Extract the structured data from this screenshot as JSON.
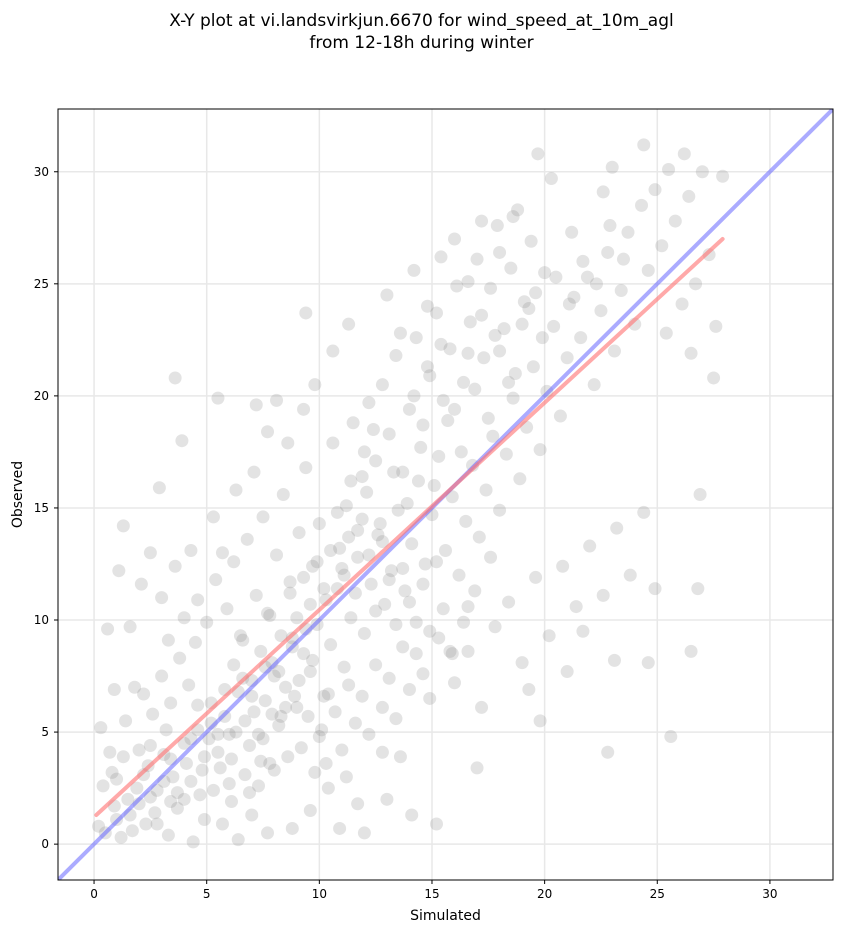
{
  "chart_data": {
    "type": "scatter",
    "title_lines": [
      "X-Y plot at vi.landsvirkjun.6670 for wind_speed_at_10m_agl",
      "from 12-18h during winter"
    ],
    "xlabel": "Simulated",
    "ylabel": "Observed",
    "xlim": [
      -1.6,
      32.8
    ],
    "ylim": [
      -1.6,
      32.8
    ],
    "xticks": [
      0,
      5,
      10,
      15,
      20,
      25,
      30
    ],
    "yticks": [
      0,
      5,
      10,
      15,
      20,
      25,
      30
    ],
    "grid": true,
    "colors": {
      "points": "#808080",
      "identity_line": "#6666ff",
      "fit_line": "#ff7070",
      "grid": "#e8e8e8"
    },
    "identity_line": {
      "x": [
        -1.6,
        32.8
      ],
      "y": [
        -1.6,
        32.8
      ]
    },
    "fit_line": {
      "x": [
        0.1,
        27.9
      ],
      "y": [
        1.3,
        27.0
      ]
    },
    "points": [
      [
        0.5,
        0.5
      ],
      [
        1.0,
        1.1
      ],
      [
        1.5,
        2.0
      ],
      [
        0.8,
        3.2
      ],
      [
        1.2,
        0.3
      ],
      [
        2.0,
        1.8
      ],
      [
        2.4,
        3.5
      ],
      [
        2.8,
        2.4
      ],
      [
        3.1,
        4.0
      ],
      [
        3.5,
        3.0
      ],
      [
        0.3,
        5.2
      ],
      [
        0.6,
        9.6
      ],
      [
        1.1,
        12.2
      ],
      [
        1.3,
        14.2
      ],
      [
        1.6,
        9.7
      ],
      [
        2.1,
        11.6
      ],
      [
        2.5,
        13.0
      ],
      [
        2.9,
        15.9
      ],
      [
        3.6,
        20.8
      ],
      [
        3.9,
        18.0
      ],
      [
        4.0,
        2.0
      ],
      [
        4.3,
        4.7
      ],
      [
        4.6,
        6.2
      ],
      [
        4.8,
        3.3
      ],
      [
        5.2,
        5.4
      ],
      [
        5.5,
        4.1
      ],
      [
        5.8,
        6.9
      ],
      [
        6.0,
        2.7
      ],
      [
        6.3,
        5.0
      ],
      [
        6.6,
        7.4
      ],
      [
        6.9,
        4.4
      ],
      [
        7.1,
        5.9
      ],
      [
        7.4,
        3.7
      ],
      [
        7.6,
        6.4
      ],
      [
        7.9,
        8.1
      ],
      [
        8.2,
        5.3
      ],
      [
        8.5,
        7.0
      ],
      [
        8.8,
        9.2
      ],
      [
        9.0,
        6.1
      ],
      [
        9.3,
        8.5
      ],
      [
        5.0,
        9.9
      ],
      [
        5.4,
        11.8
      ],
      [
        5.9,
        10.5
      ],
      [
        6.2,
        12.6
      ],
      [
        6.5,
        9.3
      ],
      [
        6.8,
        13.6
      ],
      [
        7.2,
        11.1
      ],
      [
        7.5,
        14.6
      ],
      [
        7.8,
        10.2
      ],
      [
        8.1,
        12.9
      ],
      [
        8.4,
        15.6
      ],
      [
        8.7,
        11.7
      ],
      [
        9.1,
        13.9
      ],
      [
        9.4,
        16.8
      ],
      [
        9.7,
        12.4
      ],
      [
        10.0,
        14.3
      ],
      [
        10.3,
        10.9
      ],
      [
        10.6,
        17.9
      ],
      [
        10.9,
        13.2
      ],
      [
        11.2,
        15.1
      ],
      [
        9.6,
        7.7
      ],
      [
        9.9,
        9.8
      ],
      [
        10.2,
        6.6
      ],
      [
        10.5,
        8.9
      ],
      [
        10.8,
        11.4
      ],
      [
        11.1,
        7.9
      ],
      [
        11.4,
        10.1
      ],
      [
        11.7,
        12.8
      ],
      [
        12.0,
        9.4
      ],
      [
        12.3,
        11.6
      ],
      [
        12.6,
        13.8
      ],
      [
        12.9,
        10.7
      ],
      [
        13.2,
        12.2
      ],
      [
        13.5,
        14.9
      ],
      [
        13.8,
        11.3
      ],
      [
        14.1,
        13.4
      ],
      [
        14.4,
        16.2
      ],
      [
        14.7,
        12.5
      ],
      [
        15.0,
        14.7
      ],
      [
        15.3,
        17.3
      ],
      [
        11.5,
        18.8
      ],
      [
        11.9,
        16.4
      ],
      [
        12.2,
        19.7
      ],
      [
        12.5,
        17.1
      ],
      [
        12.8,
        20.5
      ],
      [
        13.1,
        18.3
      ],
      [
        13.4,
        21.8
      ],
      [
        13.7,
        16.6
      ],
      [
        14.0,
        19.4
      ],
      [
        14.3,
        22.6
      ],
      [
        14.6,
        18.7
      ],
      [
        14.9,
        20.9
      ],
      [
        15.2,
        23.7
      ],
      [
        15.5,
        19.8
      ],
      [
        15.8,
        22.1
      ],
      [
        16.1,
        24.9
      ],
      [
        16.4,
        20.6
      ],
      [
        16.7,
        23.3
      ],
      [
        17.0,
        26.1
      ],
      [
        17.3,
        21.7
      ],
      [
        15.6,
        13.1
      ],
      [
        15.9,
        15.5
      ],
      [
        16.2,
        12.0
      ],
      [
        16.5,
        14.4
      ],
      [
        16.8,
        16.9
      ],
      [
        17.1,
        13.7
      ],
      [
        17.4,
        15.8
      ],
      [
        17.7,
        18.2
      ],
      [
        18.0,
        14.9
      ],
      [
        18.3,
        17.4
      ],
      [
        18.6,
        19.9
      ],
      [
        18.9,
        16.3
      ],
      [
        19.2,
        18.6
      ],
      [
        19.5,
        21.3
      ],
      [
        19.8,
        17.6
      ],
      [
        20.1,
        20.2
      ],
      [
        20.4,
        23.1
      ],
      [
        20.7,
        19.1
      ],
      [
        21.0,
        21.7
      ],
      [
        21.3,
        24.4
      ],
      [
        17.6,
        24.8
      ],
      [
        17.9,
        27.6
      ],
      [
        18.2,
        23.0
      ],
      [
        18.5,
        25.7
      ],
      [
        18.8,
        28.3
      ],
      [
        19.1,
        24.2
      ],
      [
        19.4,
        26.9
      ],
      [
        19.7,
        30.8
      ],
      [
        20.0,
        25.5
      ],
      [
        20.3,
        29.7
      ],
      [
        21.6,
        22.6
      ],
      [
        21.9,
        25.3
      ],
      [
        22.2,
        20.5
      ],
      [
        22.5,
        23.8
      ],
      [
        22.8,
        26.4
      ],
      [
        23.1,
        22.0
      ],
      [
        23.4,
        24.7
      ],
      [
        23.7,
        27.3
      ],
      [
        24.0,
        23.2
      ],
      [
        24.3,
        28.5
      ],
      [
        24.6,
        25.6
      ],
      [
        24.9,
        29.2
      ],
      [
        25.2,
        26.7
      ],
      [
        25.5,
        30.1
      ],
      [
        25.8,
        27.8
      ],
      [
        26.1,
        24.1
      ],
      [
        26.4,
        28.9
      ],
      [
        26.7,
        25.0
      ],
      [
        27.0,
        30.0
      ],
      [
        27.3,
        26.3
      ],
      [
        27.6,
        23.1
      ],
      [
        27.9,
        29.8
      ],
      [
        27.5,
        20.8
      ],
      [
        26.5,
        21.9
      ],
      [
        25.4,
        22.8
      ],
      [
        24.4,
        31.2
      ],
      [
        23.0,
        30.2
      ],
      [
        21.2,
        27.3
      ],
      [
        22.6,
        29.1
      ],
      [
        26.2,
        30.8
      ],
      [
        16.0,
        7.2
      ],
      [
        16.6,
        8.6
      ],
      [
        17.2,
        6.1
      ],
      [
        17.8,
        9.7
      ],
      [
        18.4,
        10.8
      ],
      [
        19.0,
        8.1
      ],
      [
        19.6,
        11.9
      ],
      [
        20.2,
        9.3
      ],
      [
        20.8,
        12.4
      ],
      [
        21.4,
        10.6
      ],
      [
        22.0,
        13.3
      ],
      [
        22.6,
        11.1
      ],
      [
        23.2,
        14.1
      ],
      [
        23.8,
        12.0
      ],
      [
        24.4,
        14.8
      ],
      [
        24.9,
        11.4
      ],
      [
        25.6,
        4.8
      ],
      [
        26.5,
        8.6
      ],
      [
        26.8,
        11.4
      ],
      [
        26.9,
        15.6
      ],
      [
        19.8,
        5.5
      ],
      [
        21.0,
        7.7
      ],
      [
        22.8,
        4.1
      ],
      [
        23.1,
        8.2
      ],
      [
        24.6,
        8.1
      ],
      [
        21.7,
        9.5
      ],
      [
        19.3,
        6.9
      ],
      [
        17.0,
        3.4
      ],
      [
        15.2,
        0.9
      ],
      [
        14.1,
        1.3
      ],
      [
        13.0,
        2.0
      ],
      [
        12.0,
        0.5
      ],
      [
        11.2,
        3.0
      ],
      [
        10.4,
        2.5
      ],
      [
        9.6,
        1.5
      ],
      [
        8.8,
        0.7
      ],
      [
        10.9,
        0.7
      ],
      [
        11.7,
        1.8
      ],
      [
        12.8,
        4.1
      ],
      [
        13.6,
        3.9
      ],
      [
        2.2,
        6.7
      ],
      [
        2.6,
        5.8
      ],
      [
        3.0,
        7.5
      ],
      [
        3.4,
        6.3
      ],
      [
        3.8,
        8.3
      ],
      [
        4.2,
        7.1
      ],
      [
        4.5,
        9.0
      ],
      [
        1.8,
        7.0
      ],
      [
        1.4,
        5.5
      ],
      [
        0.9,
        6.9
      ],
      [
        0.2,
        0.8
      ],
      [
        0.4,
        2.6
      ],
      [
        0.7,
        4.1
      ],
      [
        0.9,
        1.7
      ],
      [
        1.7,
        0.6
      ],
      [
        2.3,
        0.9
      ],
      [
        2.7,
        1.4
      ],
      [
        3.3,
        0.4
      ],
      [
        3.7,
        1.6
      ],
      [
        4.4,
        0.1
      ],
      [
        4.9,
        1.1
      ],
      [
        5.3,
        2.4
      ],
      [
        5.7,
        0.9
      ],
      [
        6.1,
        1.9
      ],
      [
        6.4,
        0.2
      ],
      [
        6.7,
        3.1
      ],
      [
        7.0,
        1.3
      ],
      [
        7.3,
        2.6
      ],
      [
        7.7,
        0.5
      ],
      [
        8.0,
        3.3
      ],
      [
        2.0,
        4.2
      ],
      [
        2.5,
        2.1
      ],
      [
        3.2,
        5.1
      ],
      [
        3.4,
        1.9
      ],
      [
        4.1,
        3.6
      ],
      [
        4.7,
        2.2
      ],
      [
        5.1,
        4.7
      ],
      [
        5.6,
        3.4
      ],
      [
        6.0,
        4.9
      ],
      [
        6.9,
        2.3
      ],
      [
        7.5,
        4.7
      ],
      [
        7.8,
        3.6
      ],
      [
        8.3,
        5.7
      ],
      [
        8.6,
        3.9
      ],
      [
        8.9,
        6.6
      ],
      [
        9.2,
        4.3
      ],
      [
        9.5,
        5.7
      ],
      [
        9.8,
        3.2
      ],
      [
        10.1,
        5.1
      ],
      [
        10.4,
        6.7
      ],
      [
        3.0,
        11.0
      ],
      [
        3.3,
        9.1
      ],
      [
        3.6,
        12.4
      ],
      [
        4.0,
        10.1
      ],
      [
        4.3,
        13.1
      ],
      [
        4.6,
        10.9
      ],
      [
        5.3,
        14.6
      ],
      [
        5.7,
        13.0
      ],
      [
        6.3,
        15.8
      ],
      [
        7.1,
        16.6
      ],
      [
        7.7,
        18.4
      ],
      [
        8.6,
        17.9
      ],
      [
        9.3,
        19.4
      ],
      [
        9.8,
        20.5
      ],
      [
        10.6,
        22.0
      ],
      [
        11.3,
        23.2
      ],
      [
        9.4,
        23.7
      ],
      [
        8.1,
        19.8
      ],
      [
        7.2,
        19.6
      ],
      [
        5.5,
        19.9
      ],
      [
        12.1,
        15.7
      ],
      [
        12.7,
        14.3
      ],
      [
        13.3,
        16.6
      ],
      [
        13.9,
        15.2
      ],
      [
        14.5,
        17.7
      ],
      [
        15.1,
        16.0
      ],
      [
        15.7,
        18.9
      ],
      [
        16.3,
        17.5
      ],
      [
        16.9,
        20.3
      ],
      [
        17.5,
        19.0
      ],
      [
        11.0,
        12.3
      ],
      [
        11.3,
        13.7
      ],
      [
        11.6,
        11.2
      ],
      [
        11.9,
        14.5
      ],
      [
        12.2,
        12.9
      ],
      [
        12.5,
        10.4
      ],
      [
        12.8,
        13.5
      ],
      [
        13.1,
        11.8
      ],
      [
        13.4,
        9.8
      ],
      [
        13.7,
        12.3
      ],
      [
        14.0,
        10.8
      ],
      [
        14.3,
        8.5
      ],
      [
        14.6,
        11.6
      ],
      [
        14.9,
        9.5
      ],
      [
        15.2,
        12.6
      ],
      [
        15.5,
        10.5
      ],
      [
        15.8,
        8.6
      ],
      [
        16.4,
        9.9
      ],
      [
        16.9,
        11.3
      ],
      [
        17.6,
        12.8
      ],
      [
        10.0,
        4.8
      ],
      [
        10.3,
        3.6
      ],
      [
        10.7,
        5.9
      ],
      [
        11.0,
        4.2
      ],
      [
        11.3,
        7.1
      ],
      [
        11.6,
        5.4
      ],
      [
        11.9,
        6.6
      ],
      [
        12.2,
        4.9
      ],
      [
        12.5,
        8.0
      ],
      [
        12.8,
        6.1
      ],
      [
        13.1,
        7.4
      ],
      [
        13.4,
        5.6
      ],
      [
        13.7,
        8.8
      ],
      [
        14.0,
        6.9
      ],
      [
        14.3,
        9.9
      ],
      [
        14.6,
        7.6
      ],
      [
        14.9,
        6.5
      ],
      [
        15.3,
        9.2
      ],
      [
        15.9,
        8.5
      ],
      [
        16.6,
        10.6
      ],
      [
        6.2,
        8.0
      ],
      [
        6.6,
        9.1
      ],
      [
        7.0,
        7.3
      ],
      [
        7.4,
        8.6
      ],
      [
        7.7,
        10.3
      ],
      [
        8.0,
        7.5
      ],
      [
        8.3,
        9.3
      ],
      [
        8.7,
        11.2
      ],
      [
        9.0,
        10.1
      ],
      [
        9.3,
        11.9
      ],
      [
        9.6,
        10.7
      ],
      [
        9.9,
        12.6
      ],
      [
        10.2,
        11.4
      ],
      [
        10.5,
        13.1
      ],
      [
        10.8,
        14.8
      ],
      [
        11.1,
        12.0
      ],
      [
        11.4,
        16.2
      ],
      [
        11.7,
        14.0
      ],
      [
        12.0,
        17.5
      ],
      [
        12.4,
        18.5
      ],
      [
        1.0,
        2.9
      ],
      [
        1.3,
        3.9
      ],
      [
        1.6,
        1.3
      ],
      [
        1.9,
        2.5
      ],
      [
        2.2,
        3.1
      ],
      [
        2.5,
        4.4
      ],
      [
        2.8,
        0.9
      ],
      [
        3.1,
        2.8
      ],
      [
        3.4,
        3.8
      ],
      [
        3.7,
        2.3
      ],
      [
        4.0,
        4.5
      ],
      [
        4.3,
        2.8
      ],
      [
        4.6,
        5.1
      ],
      [
        4.9,
        3.9
      ],
      [
        5.2,
        6.3
      ],
      [
        5.5,
        4.9
      ],
      [
        5.8,
        5.7
      ],
      [
        6.1,
        3.8
      ],
      [
        6.4,
        6.8
      ],
      [
        6.7,
        5.5
      ],
      [
        7.0,
        6.6
      ],
      [
        7.3,
        4.9
      ],
      [
        7.6,
        7.9
      ],
      [
        7.9,
        5.8
      ],
      [
        8.2,
        7.7
      ],
      [
        8.5,
        6.1
      ],
      [
        8.8,
        8.8
      ],
      [
        9.1,
        7.3
      ],
      [
        9.4,
        9.6
      ],
      [
        9.7,
        8.2
      ],
      [
        18.0,
        22.0
      ],
      [
        18.7,
        21.0
      ],
      [
        19.3,
        23.9
      ],
      [
        19.9,
        22.6
      ],
      [
        20.5,
        25.3
      ],
      [
        21.1,
        24.1
      ],
      [
        21.7,
        26.0
      ],
      [
        22.3,
        25.0
      ],
      [
        22.9,
        27.6
      ],
      [
        23.5,
        26.1
      ],
      [
        14.2,
        20.0
      ],
      [
        14.8,
        21.3
      ],
      [
        15.4,
        22.3
      ],
      [
        16.0,
        19.4
      ],
      [
        16.6,
        21.9
      ],
      [
        17.2,
        23.6
      ],
      [
        17.8,
        22.7
      ],
      [
        18.4,
        20.6
      ],
      [
        19.0,
        23.2
      ],
      [
        19.6,
        24.6
      ],
      [
        13.0,
        24.5
      ],
      [
        13.6,
        22.8
      ],
      [
        14.2,
        25.6
      ],
      [
        14.8,
        24.0
      ],
      [
        15.4,
        26.2
      ],
      [
        16.0,
        27.0
      ],
      [
        16.6,
        25.1
      ],
      [
        17.2,
        27.8
      ],
      [
        18.0,
        26.4
      ],
      [
        18.6,
        28.0
      ]
    ]
  }
}
